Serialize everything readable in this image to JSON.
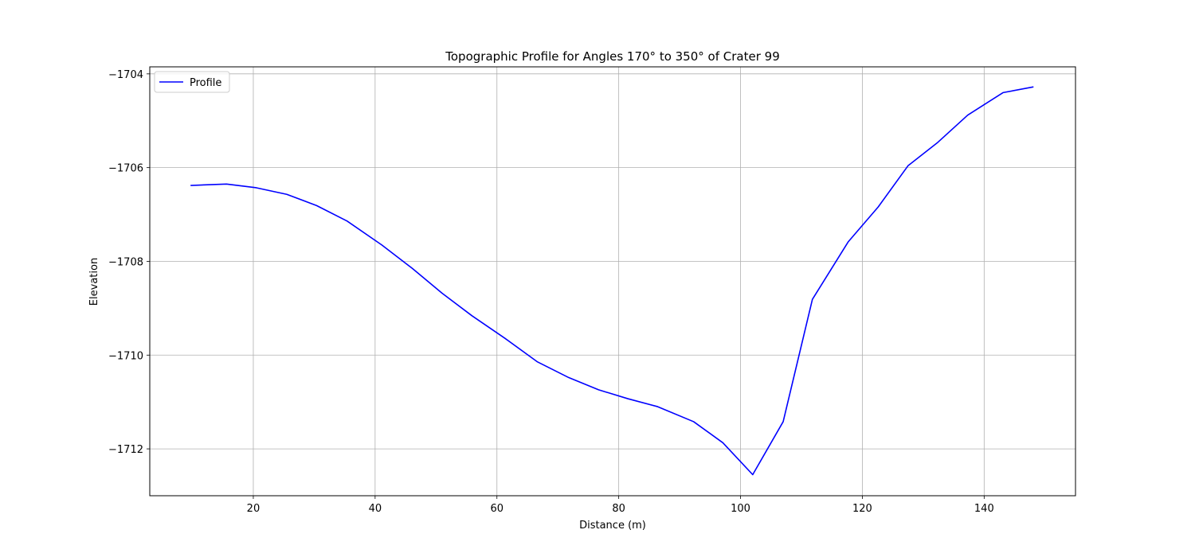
{
  "chart_data": {
    "type": "line",
    "title": "Topographic Profile for Angles 170° to 350° of Crater 99",
    "xlabel": "Distance (m)",
    "ylabel": "Elevation",
    "xlim": [
      3,
      155
    ],
    "ylim": [
      -1713.0,
      -1703.85
    ],
    "xticks": [
      20,
      40,
      60,
      80,
      100,
      120,
      140
    ],
    "yticks": [
      -1712,
      -1710,
      -1708,
      -1706,
      -1704
    ],
    "xtick_labels": [
      "20",
      "40",
      "60",
      "80",
      "100",
      "120",
      "140"
    ],
    "ytick_labels": [
      "−1712",
      "−1710",
      "−1708",
      "−1706",
      "−1704"
    ],
    "grid": true,
    "legend_position": "top-left",
    "series": [
      {
        "name": "Profile",
        "color": "#0000ff",
        "x": [
          9.8,
          15.6,
          20.5,
          25.5,
          30.4,
          35.4,
          41.1,
          46.1,
          51.0,
          55.9,
          61.3,
          66.6,
          71.8,
          76.7,
          81.5,
          86.4,
          92.3,
          97.1,
          102.0,
          107.0,
          111.8,
          117.7,
          122.6,
          127.5,
          132.4,
          137.3,
          143.1,
          148.0
        ],
        "y": [
          -1706.38,
          -1706.35,
          -1706.43,
          -1706.57,
          -1706.81,
          -1707.14,
          -1707.65,
          -1708.15,
          -1708.68,
          -1709.16,
          -1709.64,
          -1710.14,
          -1710.48,
          -1710.74,
          -1710.93,
          -1711.1,
          -1711.42,
          -1711.87,
          -1712.55,
          -1711.42,
          -1708.81,
          -1707.58,
          -1706.84,
          -1705.96,
          -1705.46,
          -1704.88,
          -1704.4,
          -1704.28
        ]
      }
    ]
  }
}
